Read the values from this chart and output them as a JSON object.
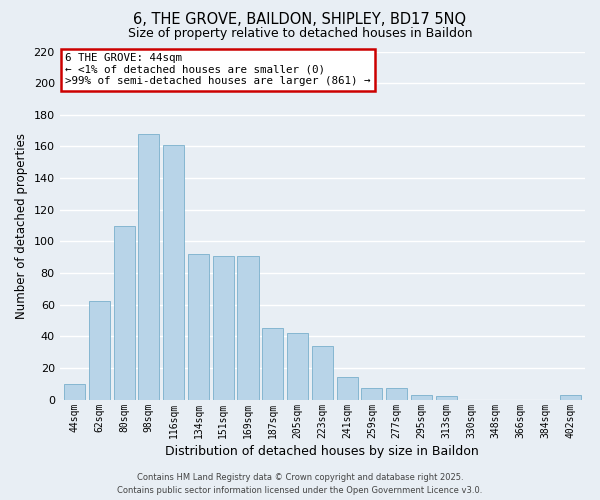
{
  "title": "6, THE GROVE, BAILDON, SHIPLEY, BD17 5NQ",
  "subtitle": "Size of property relative to detached houses in Baildon",
  "xlabel": "Distribution of detached houses by size in Baildon",
  "ylabel": "Number of detached properties",
  "categories": [
    "44sqm",
    "62sqm",
    "80sqm",
    "98sqm",
    "116sqm",
    "134sqm",
    "151sqm",
    "169sqm",
    "187sqm",
    "205sqm",
    "223sqm",
    "241sqm",
    "259sqm",
    "277sqm",
    "295sqm",
    "313sqm",
    "330sqm",
    "348sqm",
    "366sqm",
    "384sqm",
    "402sqm"
  ],
  "values": [
    10,
    62,
    110,
    168,
    161,
    92,
    91,
    91,
    45,
    42,
    34,
    14,
    7,
    7,
    3,
    2,
    0,
    0,
    0,
    0,
    3
  ],
  "bar_color": "#b8d4e8",
  "bar_edge_color": "#7ab0cc",
  "ylim": [
    0,
    220
  ],
  "yticks": [
    0,
    20,
    40,
    60,
    80,
    100,
    120,
    140,
    160,
    180,
    200,
    220
  ],
  "annotation_box_text": "6 THE GROVE: 44sqm\n← <1% of detached houses are smaller (0)\n>99% of semi-detached houses are larger (861) →",
  "box_edge_color": "#cc0000",
  "background_color": "#e8eef4",
  "grid_color": "#ffffff",
  "footer_line1": "Contains HM Land Registry data © Crown copyright and database right 2025.",
  "footer_line2": "Contains public sector information licensed under the Open Government Licence v3.0."
}
